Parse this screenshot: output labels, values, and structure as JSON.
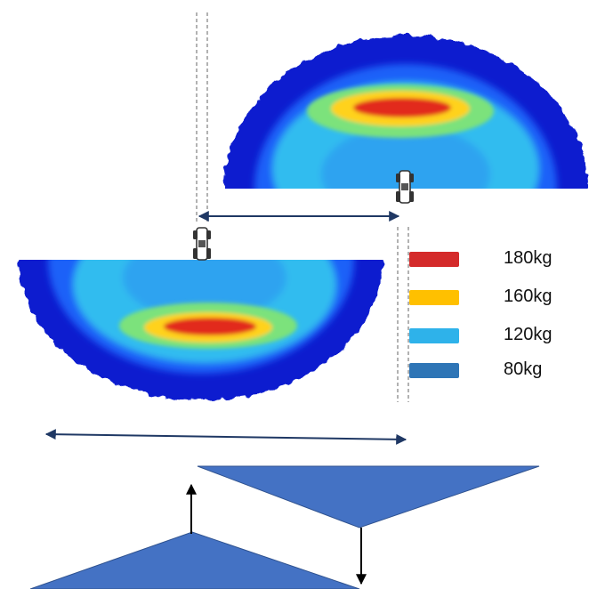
{
  "legend": {
    "items": [
      {
        "label": "180kg",
        "color": "#d42a2a"
      },
      {
        "label": "160kg",
        "color": "#ffc000"
      },
      {
        "label": "120kg",
        "color": "#2eb2ea"
      },
      {
        "label": "80kg",
        "color": "#2e75b6"
      }
    ]
  },
  "colors": {
    "heat_outer": "#0a1ecf",
    "heat_mid_blue": "#1e6dff",
    "heat_cyan": "#35c6ee",
    "heat_green": "#7be27b",
    "heat_yellow": "#ffd21a",
    "heat_red": "#e22a1a",
    "arrow": "#1f3864",
    "triangle_fill": "#4472c4",
    "triangle_stroke": "#2f528f",
    "tractor": "#333333",
    "guide_line": "#888888"
  },
  "icons": {
    "machine": "tractor-icon"
  }
}
